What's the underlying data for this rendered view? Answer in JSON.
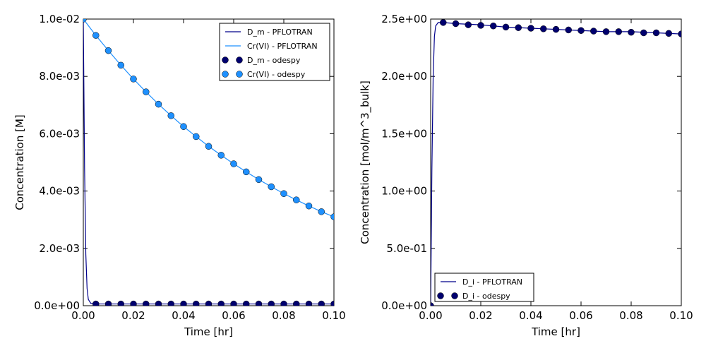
{
  "chart_data": [
    {
      "type": "line",
      "xlabel": "Time [hr]",
      "ylabel": "Concentration [M]",
      "xlim": [
        0,
        0.1
      ],
      "ylim": [
        0,
        0.01
      ],
      "xticks": [
        0.0,
        0.02,
        0.04,
        0.06,
        0.08,
        0.1
      ],
      "xtick_labels": [
        "0.00",
        "0.02",
        "0.04",
        "0.06",
        "0.08",
        "0.10"
      ],
      "yticks": [
        0.0,
        0.002,
        0.004,
        0.006,
        0.008,
        0.01
      ],
      "ytick_labels": [
        "0.0e+00",
        "2.0e-03",
        "4.0e-03",
        "6.0e-03",
        "8.0e-03",
        "1.0e-02"
      ],
      "grid": false,
      "legend_position": "top-right",
      "series": [
        {
          "name": "D_m - PFLOTRAN",
          "kind": "line",
          "color": "#00008b",
          "x": [
            0,
            0.0005,
            0.001,
            0.0015,
            0.002,
            0.003,
            0.005,
            0.01,
            0.02,
            0.04,
            0.06,
            0.08,
            0.1
          ],
          "y": [
            0.01,
            0.0048,
            0.0018,
            0.0006,
            0.00022,
            8e-05,
            6e-05,
            6e-05,
            6e-05,
            6e-05,
            6e-05,
            6e-05,
            6e-05
          ]
        },
        {
          "name": "Cr(VI) - PFLOTRAN",
          "kind": "line",
          "color": "#1e90ff",
          "x": [
            0,
            0.005,
            0.01,
            0.015,
            0.02,
            0.025,
            0.03,
            0.035,
            0.04,
            0.045,
            0.05,
            0.055,
            0.06,
            0.065,
            0.07,
            0.075,
            0.08,
            0.085,
            0.09,
            0.095,
            0.1
          ],
          "y": [
            0.01,
            0.00943,
            0.0089,
            0.00839,
            0.00791,
            0.00746,
            0.00703,
            0.00663,
            0.00625,
            0.0059,
            0.00556,
            0.00525,
            0.00495,
            0.00467,
            0.0044,
            0.00415,
            0.00391,
            0.00369,
            0.00348,
            0.00328,
            0.0031
          ]
        },
        {
          "name": "D_m - odespy",
          "kind": "marker",
          "color": "#00006e",
          "x": [
            0.005,
            0.01,
            0.015,
            0.02,
            0.025,
            0.03,
            0.035,
            0.04,
            0.045,
            0.05,
            0.055,
            0.06,
            0.065,
            0.07,
            0.075,
            0.08,
            0.085,
            0.09,
            0.095,
            0.1
          ],
          "y": [
            6e-05,
            6e-05,
            6e-05,
            6e-05,
            6e-05,
            6e-05,
            6e-05,
            6e-05,
            6e-05,
            6e-05,
            6e-05,
            6e-05,
            6e-05,
            6e-05,
            6e-05,
            6e-05,
            6e-05,
            6e-05,
            6e-05,
            6e-05
          ]
        },
        {
          "name": "Cr(VI) - odespy",
          "kind": "marker",
          "color": "#1e90ff",
          "x": [
            0,
            0.005,
            0.01,
            0.015,
            0.02,
            0.025,
            0.03,
            0.035,
            0.04,
            0.045,
            0.05,
            0.055,
            0.06,
            0.065,
            0.07,
            0.075,
            0.08,
            0.085,
            0.09,
            0.095,
            0.1
          ],
          "y": [
            0.01,
            0.00943,
            0.0089,
            0.00839,
            0.00791,
            0.00746,
            0.00703,
            0.00663,
            0.00625,
            0.0059,
            0.00556,
            0.00525,
            0.00495,
            0.00467,
            0.0044,
            0.00415,
            0.00391,
            0.00369,
            0.00348,
            0.00328,
            0.0031
          ]
        }
      ]
    },
    {
      "type": "line",
      "xlabel": "Time [hr]",
      "ylabel": "Concentration [mol/m^3_bulk]",
      "xlim": [
        0,
        0.1
      ],
      "ylim": [
        0,
        2.5
      ],
      "xticks": [
        0.0,
        0.02,
        0.04,
        0.06,
        0.08,
        0.1
      ],
      "xtick_labels": [
        "0.00",
        "0.02",
        "0.04",
        "0.06",
        "0.08",
        "0.10"
      ],
      "yticks": [
        0.0,
        0.5,
        1.0,
        1.5,
        2.0,
        2.5
      ],
      "ytick_labels": [
        "0.0e+00",
        "5.0e-01",
        "1.0e+00",
        "1.5e+00",
        "2.0e+00",
        "2.5e+00"
      ],
      "grid": false,
      "legend_position": "bottom-left",
      "series": [
        {
          "name": "D_i - PFLOTRAN",
          "kind": "line",
          "color": "#00008b",
          "x": [
            0,
            0.0005,
            0.001,
            0.0015,
            0.002,
            0.003,
            0.005,
            0.01,
            0.02,
            0.03,
            0.04,
            0.05,
            0.06,
            0.07,
            0.08,
            0.09,
            0.1
          ],
          "y": [
            0,
            1.2,
            2.0,
            2.35,
            2.44,
            2.47,
            2.47,
            2.46,
            2.45,
            2.43,
            2.42,
            2.41,
            2.4,
            2.39,
            2.39,
            2.38,
            2.37
          ]
        },
        {
          "name": "D_i - odespy",
          "kind": "marker",
          "color": "#00006e",
          "x": [
            0,
            0.005,
            0.01,
            0.015,
            0.02,
            0.025,
            0.03,
            0.035,
            0.04,
            0.045,
            0.05,
            0.055,
            0.06,
            0.065,
            0.07,
            0.075,
            0.08,
            0.085,
            0.09,
            0.095,
            0.1
          ],
          "y": [
            0,
            2.47,
            2.46,
            2.45,
            2.445,
            2.44,
            2.43,
            2.425,
            2.42,
            2.415,
            2.41,
            2.405,
            2.4,
            2.395,
            2.39,
            2.39,
            2.385,
            2.38,
            2.38,
            2.375,
            2.37
          ]
        }
      ]
    }
  ]
}
